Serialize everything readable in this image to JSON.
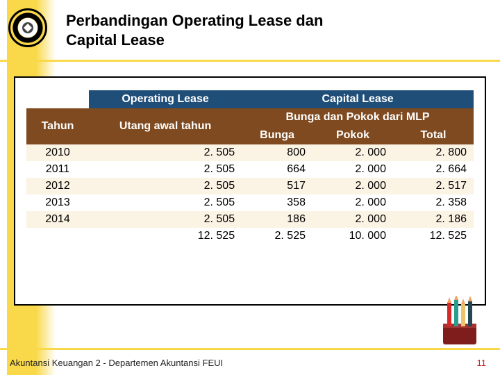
{
  "title_line1": "Perbandingan Operating Lease dan",
  "title_line2": "Capital Lease",
  "footer": "Akuntansi Keuangan 2 - Departemen Akuntansi FEUI",
  "page_number": "11",
  "table": {
    "header_top": {
      "operating": "Operating Lease",
      "capital": "Capital Lease"
    },
    "header_mid": {
      "tahun": "Tahun",
      "utang": "Utang awal tahun",
      "bunga_group": "Bunga dan Pokok dari MLP",
      "bunga": "Bunga",
      "pokok": "Pokok",
      "total": "Total"
    },
    "rows": [
      {
        "tahun": "2010",
        "utang": "2. 505",
        "bunga": "800",
        "pokok": "2. 000",
        "total": "2. 800"
      },
      {
        "tahun": "2011",
        "utang": "2. 505",
        "bunga": "664",
        "pokok": "2. 000",
        "total": "2. 664"
      },
      {
        "tahun": "2012",
        "utang": "2. 505",
        "bunga": "517",
        "pokok": "2. 000",
        "total": "2. 517"
      },
      {
        "tahun": "2013",
        "utang": "2. 505",
        "bunga": "358",
        "pokok": "2. 000",
        "total": "2. 358"
      },
      {
        "tahun": "2014",
        "utang": "2. 505",
        "bunga": "186",
        "pokok": "2. 000",
        "total": "2. 186"
      },
      {
        "tahun": "",
        "utang": "12. 525",
        "bunga": "2. 525",
        "pokok": "10. 000",
        "total": "12. 525"
      }
    ]
  },
  "colors": {
    "accent_yellow": "#f9d94a",
    "navy": "#1f4e79",
    "brown": "#7f4a1f",
    "row_alt": "#fbf3e4"
  }
}
